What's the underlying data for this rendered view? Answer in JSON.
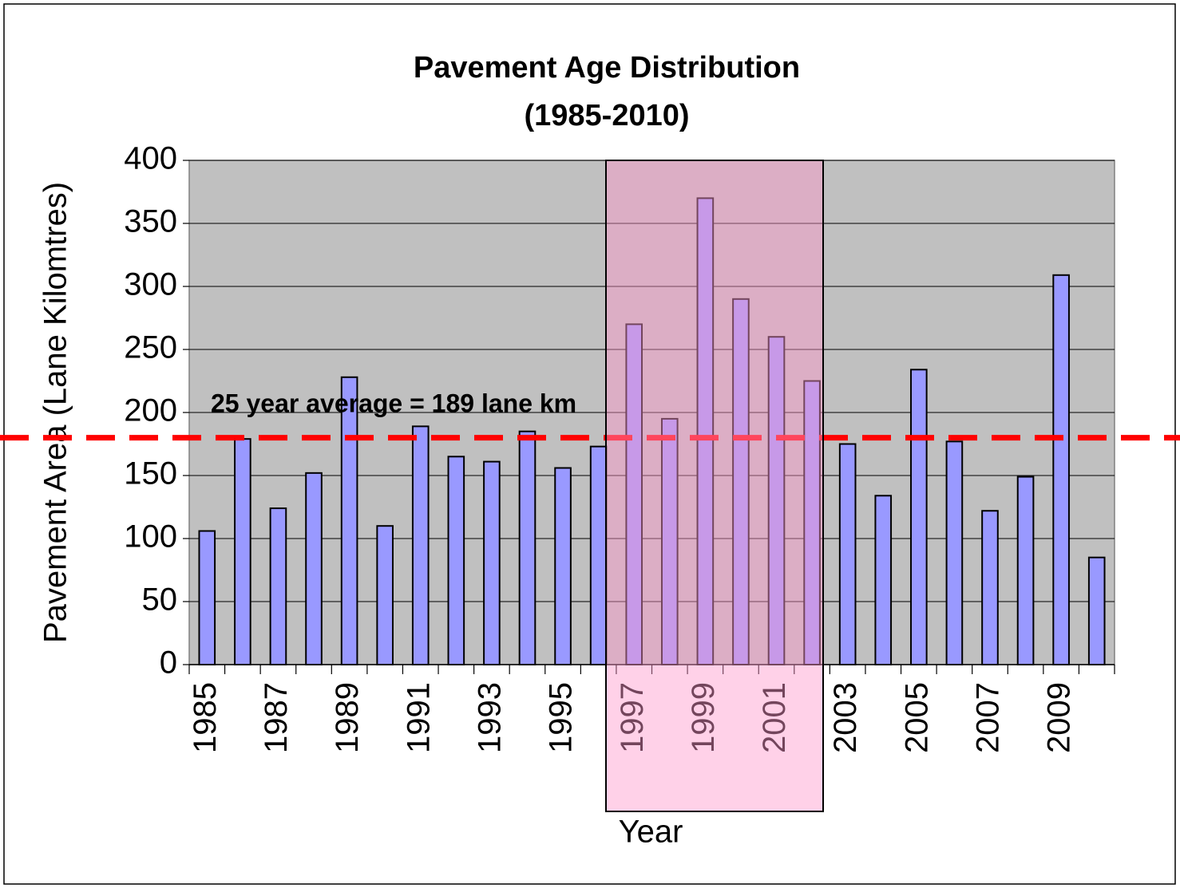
{
  "chart_data": {
    "type": "bar",
    "title": "Pavement Age Distribution",
    "subtitle": "(1985-2010)",
    "x_label": "Year",
    "y_label": "Pavement Area (Lane Kilomtres)",
    "categories": [
      "1985",
      null,
      "1987",
      null,
      "1989",
      null,
      "1991",
      null,
      "1993",
      null,
      "1995",
      null,
      "1997",
      null,
      "1999",
      null,
      "2001",
      null,
      "2003",
      null,
      "2005",
      null,
      "2007",
      null,
      "2009",
      null
    ],
    "values": [
      106,
      179,
      124,
      152,
      228,
      110,
      189,
      165,
      161,
      185,
      156,
      173,
      270,
      195,
      370,
      290,
      260,
      225,
      175,
      134,
      234,
      177,
      122,
      149,
      309,
      85
    ],
    "color": "#9999ff",
    "ylim": [
      0,
      400
    ],
    "yticks": [
      0,
      50,
      100,
      150,
      200,
      250,
      300,
      350,
      400
    ],
    "grid": true,
    "reference_line": 180,
    "reference_line_color": "#ff0000",
    "annotation": "25 year average = 189 lane km"
  }
}
